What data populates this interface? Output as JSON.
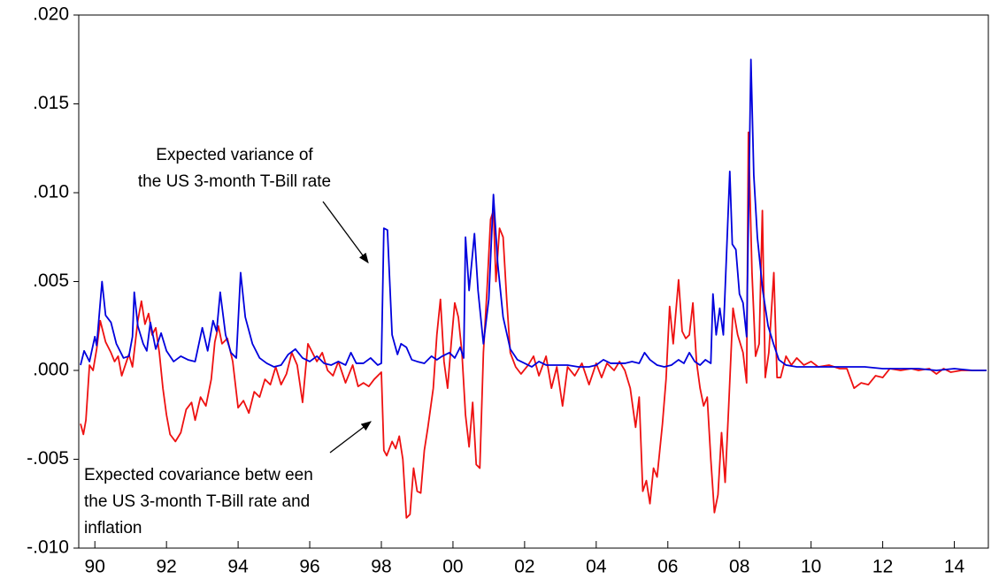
{
  "chart_data": {
    "type": "line",
    "xlim": [
      1989.55,
      2014.95
    ],
    "xticks": [
      {
        "value": 1990,
        "label": "90"
      },
      {
        "value": 1992,
        "label": "92"
      },
      {
        "value": 1994,
        "label": "94"
      },
      {
        "value": 1996,
        "label": "96"
      },
      {
        "value": 1998,
        "label": "98"
      },
      {
        "value": 2000,
        "label": "00"
      },
      {
        "value": 2002,
        "label": "02"
      },
      {
        "value": 2004,
        "label": "04"
      },
      {
        "value": 2006,
        "label": "06"
      },
      {
        "value": 2008,
        "label": "08"
      },
      {
        "value": 2010,
        "label": "10"
      },
      {
        "value": 2012,
        "label": "12"
      },
      {
        "value": 2014,
        "label": "14"
      }
    ],
    "ylim": [
      -0.01,
      0.02
    ],
    "yticks": [
      {
        "value": -0.01,
        "label": "-.010"
      },
      {
        "value": -0.005,
        "label": "-.005"
      },
      {
        "value": 0,
        "label": ".000"
      },
      {
        "value": 0.005,
        "label": ".005"
      },
      {
        "value": 0.01,
        "label": ".010"
      },
      {
        "value": 0.015,
        "label": ".015"
      },
      {
        "value": 0.02,
        "label": ".020"
      }
    ],
    "annotations": [
      {
        "lines": [
          "Expected variance of",
          "the US 3-month T-Bill rate"
        ]
      },
      {
        "lines": [
          "Expected covariance betw een",
          "the US 3-month T-Bill rate and",
          "inflation"
        ]
      }
    ],
    "series": [
      {
        "color": "#0000dd",
        "x": [
          1989.6,
          1989.7,
          1989.85,
          1990.0,
          1990.05,
          1990.2,
          1990.3,
          1990.45,
          1990.6,
          1990.8,
          1990.95,
          1991.05,
          1991.1,
          1991.2,
          1991.35,
          1991.45,
          1991.55,
          1991.7,
          1991.85,
          1992.0,
          1992.2,
          1992.4,
          1992.6,
          1992.8,
          1993.0,
          1993.15,
          1993.3,
          1993.4,
          1993.5,
          1993.65,
          1993.8,
          1993.95,
          1994.07,
          1994.2,
          1994.4,
          1994.6,
          1994.8,
          1995.0,
          1995.2,
          1995.4,
          1995.6,
          1995.8,
          1996.0,
          1996.2,
          1996.4,
          1996.6,
          1996.8,
          1997.0,
          1997.15,
          1997.3,
          1997.5,
          1997.7,
          1997.9,
          1998.0,
          1998.07,
          1998.17,
          1998.3,
          1998.45,
          1998.55,
          1998.7,
          1998.85,
          1999.0,
          1999.2,
          1999.4,
          1999.55,
          1999.7,
          1999.9,
          2000.05,
          2000.2,
          2000.3,
          2000.35,
          2000.45,
          2000.6,
          2000.7,
          2000.85,
          2001.0,
          2001.13,
          2001.25,
          2001.4,
          2001.6,
          2001.8,
          2002.0,
          2002.2,
          2002.4,
          2002.6,
          2002.8,
          2003.0,
          2003.2,
          2003.5,
          2003.8,
          2004.0,
          2004.2,
          2004.4,
          2004.6,
          2004.8,
          2005.0,
          2005.2,
          2005.35,
          2005.5,
          2005.7,
          2005.9,
          2006.1,
          2006.3,
          2006.45,
          2006.6,
          2006.75,
          2006.9,
          2007.05,
          2007.2,
          2007.26,
          2007.35,
          2007.45,
          2007.55,
          2007.73,
          2007.8,
          2007.9,
          2008.0,
          2008.1,
          2008.2,
          2008.32,
          2008.4,
          2008.5,
          2008.65,
          2008.8,
          2008.95,
          2009.1,
          2009.3,
          2009.6,
          2010.0,
          2010.5,
          2011.0,
          2011.5,
          2012.0,
          2012.5,
          2013.0,
          2013.5,
          2014.0,
          2014.5,
          2014.9
        ],
        "values": [
          0.0003,
          0.0011,
          0.0005,
          0.0019,
          0.0014,
          0.005,
          0.0031,
          0.0027,
          0.0015,
          0.0007,
          0.0008,
          0.0019,
          0.0044,
          0.0025,
          0.0015,
          0.0011,
          0.0027,
          0.0012,
          0.0021,
          0.0011,
          0.0005,
          0.0008,
          0.0006,
          0.0005,
          0.0024,
          0.0011,
          0.0028,
          0.0022,
          0.0044,
          0.002,
          0.001,
          0.0007,
          0.0055,
          0.003,
          0.0015,
          0.0007,
          0.0004,
          0.0002,
          0.0003,
          0.0009,
          0.0012,
          0.0007,
          0.0005,
          0.0008,
          0.0004,
          0.0003,
          0.0005,
          0.0003,
          0.001,
          0.0004,
          0.0004,
          0.0007,
          0.0003,
          0.0004,
          0.008,
          0.0079,
          0.002,
          0.0009,
          0.0015,
          0.0013,
          0.0006,
          0.0005,
          0.0004,
          0.0008,
          0.0006,
          0.0008,
          0.001,
          0.0007,
          0.0013,
          0.0007,
          0.0075,
          0.0045,
          0.0077,
          0.0045,
          0.0015,
          0.004,
          0.0099,
          0.006,
          0.003,
          0.0012,
          0.0006,
          0.0004,
          0.0002,
          0.0005,
          0.0003,
          0.0003,
          0.0003,
          0.0003,
          0.0002,
          0.0002,
          0.0003,
          0.0006,
          0.0004,
          0.0004,
          0.0004,
          0.0005,
          0.0004,
          0.001,
          0.0006,
          0.0003,
          0.0002,
          0.0003,
          0.0006,
          0.0004,
          0.001,
          0.0005,
          0.0003,
          0.0006,
          0.0004,
          0.0043,
          0.002,
          0.0035,
          0.002,
          0.0112,
          0.0071,
          0.0068,
          0.0043,
          0.0038,
          0.0019,
          0.0175,
          0.011,
          0.0075,
          0.0045,
          0.0025,
          0.0015,
          0.0006,
          0.0003,
          0.0002,
          0.0002,
          0.0002,
          0.0002,
          0.0002,
          0.0001,
          0.0001,
          0.0001,
          0,
          0.0001,
          0,
          0
        ]
      },
      {
        "color": "#ee1111",
        "x": [
          1989.6,
          1989.68,
          1989.75,
          1989.85,
          1989.95,
          1990.05,
          1990.15,
          1990.3,
          1990.45,
          1990.55,
          1990.65,
          1990.75,
          1990.85,
          1990.95,
          1991.05,
          1991.2,
          1991.3,
          1991.4,
          1991.5,
          1991.6,
          1991.7,
          1991.8,
          1991.9,
          1992.0,
          1992.1,
          1992.25,
          1992.4,
          1992.55,
          1992.7,
          1992.8,
          1992.95,
          1993.1,
          1993.25,
          1993.35,
          1993.45,
          1993.55,
          1993.7,
          1993.85,
          1994.0,
          1994.15,
          1994.3,
          1994.45,
          1994.6,
          1994.75,
          1994.9,
          1995.05,
          1995.2,
          1995.35,
          1995.5,
          1995.65,
          1995.8,
          1995.95,
          1996.05,
          1996.2,
          1996.35,
          1996.5,
          1996.65,
          1996.8,
          1997.0,
          1997.2,
          1997.35,
          1997.5,
          1997.65,
          1997.8,
          1998.0,
          1998.07,
          1998.15,
          1998.3,
          1998.4,
          1998.5,
          1998.6,
          1998.7,
          1998.8,
          1998.9,
          1999.0,
          1999.1,
          1999.2,
          1999.3,
          1999.45,
          1999.55,
          1999.65,
          1999.75,
          1999.85,
          1999.95,
          2000.05,
          2000.15,
          2000.25,
          2000.35,
          2000.45,
          2000.55,
          2000.65,
          2000.75,
          2000.85,
          2000.95,
          2001.05,
          2001.13,
          2001.2,
          2001.3,
          2001.4,
          2001.5,
          2001.6,
          2001.75,
          2001.9,
          2002.1,
          2002.25,
          2002.4,
          2002.6,
          2002.75,
          2002.9,
          2003.06,
          2003.2,
          2003.4,
          2003.6,
          2003.8,
          2004.0,
          2004.15,
          2004.3,
          2004.5,
          2004.65,
          2004.8,
          2004.95,
          2005.1,
          2005.2,
          2005.3,
          2005.4,
          2005.5,
          2005.6,
          2005.7,
          2005.85,
          2005.95,
          2006.05,
          2006.15,
          2006.3,
          2006.4,
          2006.5,
          2006.6,
          2006.7,
          2006.8,
          2006.9,
          2007.0,
          2007.1,
          2007.2,
          2007.3,
          2007.4,
          2007.5,
          2007.6,
          2007.7,
          2007.82,
          2007.95,
          2008.1,
          2008.2,
          2008.25,
          2008.35,
          2008.45,
          2008.55,
          2008.64,
          2008.72,
          2008.82,
          2008.96,
          2009.05,
          2009.15,
          2009.3,
          2009.45,
          2009.6,
          2009.8,
          2010.0,
          2010.2,
          2010.5,
          2010.8,
          2011.0,
          2011.2,
          2011.4,
          2011.6,
          2011.8,
          2012.0,
          2012.2,
          2012.5,
          2012.8,
          2013.0,
          2013.3,
          2013.5,
          2013.7,
          2013.9,
          2014.2,
          2014.5,
          2014.9
        ],
        "values": [
          -0.003,
          -0.0036,
          -0.0028,
          0.0003,
          0,
          0.0012,
          0.0028,
          0.0016,
          0.001,
          0.0005,
          0.0008,
          -0.0003,
          0.0003,
          0.0009,
          0.0002,
          0.0028,
          0.0039,
          0.0026,
          0.0032,
          0.002,
          0.0024,
          0.001,
          -0.001,
          -0.0025,
          -0.0036,
          -0.004,
          -0.0035,
          -0.0022,
          -0.0018,
          -0.0028,
          -0.0015,
          -0.002,
          -0.0005,
          0.0016,
          0.0025,
          0.0015,
          0.0018,
          0.0005,
          -0.0021,
          -0.0017,
          -0.0024,
          -0.0012,
          -0.0015,
          -0.0005,
          -0.0008,
          0.0002,
          -0.0008,
          -0.0002,
          0.001,
          0.0003,
          -0.0018,
          0.0015,
          0.0011,
          0.0005,
          0.001,
          0,
          -0.0003,
          0.0005,
          -0.0007,
          0.0003,
          -0.0009,
          -0.0007,
          -0.0009,
          -0.0005,
          -0.0001,
          -0.0045,
          -0.0048,
          -0.004,
          -0.0044,
          -0.0037,
          -0.005,
          -0.0083,
          -0.0081,
          -0.0055,
          -0.0068,
          -0.0069,
          -0.0045,
          -0.0032,
          -0.001,
          0.002,
          0.004,
          0.0005,
          -0.001,
          0.0015,
          0.0038,
          0.003,
          0.001,
          -0.0025,
          -0.0043,
          -0.0018,
          -0.0053,
          -0.0055,
          0.001,
          0.0045,
          0.0085,
          0.009,
          0.005,
          0.008,
          0.0075,
          0.004,
          0.001,
          0.0002,
          -0.0002,
          0.0003,
          0.0008,
          -0.0003,
          0.0008,
          -0.001,
          0.0002,
          -0.002,
          0.0002,
          -0.0003,
          0.0004,
          -0.0008,
          0.0004,
          -0.0004,
          0.0004,
          0,
          0.0005,
          0,
          -0.001,
          -0.0032,
          -0.0015,
          -0.0068,
          -0.0062,
          -0.0075,
          -0.0055,
          -0.006,
          -0.003,
          -0.0005,
          0.0036,
          0.0015,
          0.0051,
          0.0022,
          0.0018,
          0.002,
          0.0038,
          0.0005,
          -0.001,
          -0.002,
          -0.0015,
          -0.005,
          -0.008,
          -0.007,
          -0.0035,
          -0.0063,
          -0.002,
          0.0035,
          0.002,
          0.001,
          -0.0007,
          0.0134,
          0.0055,
          0.0008,
          0.0015,
          0.009,
          -0.0004,
          0.001,
          0.0055,
          -0.0004,
          -0.0004,
          0.0008,
          0.0003,
          0.0007,
          0.0003,
          0.0005,
          0.0002,
          0.0003,
          0.0001,
          0.0001,
          -0.001,
          -0.0007,
          -0.0008,
          -0.0003,
          -0.0004,
          0.0001,
          0,
          0.0001,
          0,
          0.0001,
          -0.0002,
          0.0001,
          -0.0001,
          0,
          0,
          0
        ]
      }
    ]
  }
}
